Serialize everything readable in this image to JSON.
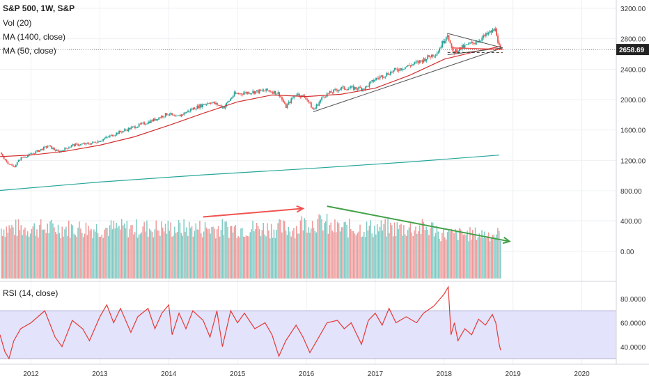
{
  "legend": {
    "symbol": "S&P 500, 1W, S&P",
    "vol": "Vol (20)",
    "ma_long": "MA (1400, close)",
    "ma_short": "MA (50, close)",
    "rsi": "RSI (14, close)"
  },
  "price_tag": "2658.69",
  "colors": {
    "up": "#26a69a",
    "down": "#ef5350",
    "vol_up": "#80cbc4",
    "vol_down": "#ef9a9a",
    "ma_short": "#d32f2f",
    "ma_long": "#26a69a",
    "rsi_line": "#e53935",
    "rsi_band": "#e3e3fb",
    "trend_red": "#ef5350",
    "trend_green": "#43a047",
    "trend_gray": "#555555"
  },
  "chart_data": [
    {
      "type": "candlestick",
      "x_ticks": [
        "2012",
        "2013",
        "2014",
        "2015",
        "2016",
        "2017",
        "2018",
        "2019",
        "2020"
      ],
      "price_ticks": [
        "3200.00",
        "2800.00",
        "2400.00",
        "2000.00",
        "1600.00",
        "1200.00",
        "800.00"
      ],
      "volume_ticks": [
        "400.00",
        "0.00"
      ],
      "price_points": [
        [
          2011.55,
          1300
        ],
        [
          2011.65,
          1180
        ],
        [
          2011.75,
          1110
        ],
        [
          2011.85,
          1230
        ],
        [
          2012.0,
          1280
        ],
        [
          2012.25,
          1390
        ],
        [
          2012.4,
          1310
        ],
        [
          2012.6,
          1400
        ],
        [
          2012.85,
          1420
        ],
        [
          2013.0,
          1460
        ],
        [
          2013.25,
          1560
        ],
        [
          2013.5,
          1640
        ],
        [
          2013.75,
          1720
        ],
        [
          2014.0,
          1820
        ],
        [
          2014.1,
          1760
        ],
        [
          2014.35,
          1880
        ],
        [
          2014.6,
          1970
        ],
        [
          2014.8,
          1900
        ],
        [
          2014.95,
          2070
        ],
        [
          2015.2,
          2100
        ],
        [
          2015.45,
          2120
        ],
        [
          2015.6,
          2080
        ],
        [
          2015.7,
          1900
        ],
        [
          2015.85,
          2080
        ],
        [
          2016.0,
          2020
        ],
        [
          2016.1,
          1860
        ],
        [
          2016.25,
          2050
        ],
        [
          2016.5,
          2150
        ],
        [
          2016.85,
          2150
        ],
        [
          2017.0,
          2270
        ],
        [
          2017.3,
          2390
        ],
        [
          2017.6,
          2480
        ],
        [
          2017.9,
          2620
        ],
        [
          2018.05,
          2870
        ],
        [
          2018.12,
          2620
        ],
        [
          2018.3,
          2700
        ],
        [
          2018.5,
          2780
        ],
        [
          2018.7,
          2900
        ],
        [
          2018.75,
          2920
        ],
        [
          2018.8,
          2690
        ],
        [
          2018.82,
          2658
        ]
      ],
      "ma50_points": [
        [
          2011.55,
          1250
        ],
        [
          2012.0,
          1270
        ],
        [
          2012.5,
          1320
        ],
        [
          2013.0,
          1400
        ],
        [
          2013.5,
          1510
        ],
        [
          2014.0,
          1660
        ],
        [
          2014.5,
          1820
        ],
        [
          2015.0,
          1970
        ],
        [
          2015.5,
          2060
        ],
        [
          2016.0,
          2040
        ],
        [
          2016.5,
          2070
        ],
        [
          2017.0,
          2150
        ],
        [
          2017.5,
          2320
        ],
        [
          2018.0,
          2530
        ],
        [
          2018.5,
          2640
        ],
        [
          2018.82,
          2700
        ]
      ],
      "ma1400_points": [
        [
          2011.55,
          805
        ],
        [
          2013.0,
          915
        ],
        [
          2014.5,
          1010
        ],
        [
          2016.0,
          1090
        ],
        [
          2017.5,
          1180
        ],
        [
          2018.8,
          1270
        ]
      ],
      "triangle_upper": [
        [
          2018.05,
          2870
        ],
        [
          2018.85,
          2680
        ]
      ],
      "triangle_lower": [
        [
          2018.05,
          2590
        ],
        [
          2018.85,
          2680
        ]
      ],
      "support_line": [
        [
          2016.1,
          1840
        ],
        [
          2018.85,
          2680
        ]
      ],
      "dashed_level": [
        [
          2018.05,
          2620
        ],
        [
          2018.85,
          2620
        ]
      ],
      "pennant_trend": [
        [
          2018.1,
          2680
        ],
        [
          2018.85,
          2660
        ]
      ],
      "volume_trend_red": [
        [
          2014.5,
          450
        ],
        [
          2015.95,
          560
        ]
      ],
      "volume_trend_green": [
        [
          2016.3,
          590
        ],
        [
          2018.95,
          130
        ]
      ],
      "rsi_ticks": [
        "80.0000",
        "60.0000",
        "40.0000"
      ],
      "rsi_levels": [
        70,
        30
      ],
      "rsi_points": [
        [
          2011.55,
          50
        ],
        [
          2011.62,
          36
        ],
        [
          2011.68,
          30
        ],
        [
          2011.75,
          45
        ],
        [
          2011.85,
          55
        ],
        [
          2012.0,
          60
        ],
        [
          2012.2,
          70
        ],
        [
          2012.35,
          48
        ],
        [
          2012.45,
          40
        ],
        [
          2012.6,
          62
        ],
        [
          2012.75,
          55
        ],
        [
          2012.85,
          45
        ],
        [
          2013.0,
          65
        ],
        [
          2013.1,
          75
        ],
        [
          2013.2,
          60
        ],
        [
          2013.3,
          72
        ],
        [
          2013.45,
          52
        ],
        [
          2013.55,
          65
        ],
        [
          2013.7,
          72
        ],
        [
          2013.8,
          55
        ],
        [
          2013.9,
          68
        ],
        [
          2014.0,
          75
        ],
        [
          2014.05,
          50
        ],
        [
          2014.15,
          68
        ],
        [
          2014.25,
          55
        ],
        [
          2014.35,
          70
        ],
        [
          2014.5,
          62
        ],
        [
          2014.6,
          48
        ],
        [
          2014.7,
          70
        ],
        [
          2014.78,
          40
        ],
        [
          2014.9,
          70
        ],
        [
          2015.0,
          60
        ],
        [
          2015.1,
          68
        ],
        [
          2015.25,
          55
        ],
        [
          2015.4,
          60
        ],
        [
          2015.5,
          50
        ],
        [
          2015.6,
          32
        ],
        [
          2015.7,
          45
        ],
        [
          2015.85,
          58
        ],
        [
          2015.95,
          48
        ],
        [
          2016.05,
          35
        ],
        [
          2016.15,
          45
        ],
        [
          2016.3,
          60
        ],
        [
          2016.45,
          62
        ],
        [
          2016.55,
          55
        ],
        [
          2016.65,
          60
        ],
        [
          2016.8,
          42
        ],
        [
          2016.9,
          62
        ],
        [
          2017.0,
          68
        ],
        [
          2017.1,
          58
        ],
        [
          2017.2,
          72
        ],
        [
          2017.3,
          60
        ],
        [
          2017.45,
          65
        ],
        [
          2017.6,
          60
        ],
        [
          2017.7,
          68
        ],
        [
          2017.85,
          74
        ],
        [
          2018.0,
          84
        ],
        [
          2018.06,
          90
        ],
        [
          2018.1,
          50
        ],
        [
          2018.15,
          60
        ],
        [
          2018.2,
          45
        ],
        [
          2018.3,
          55
        ],
        [
          2018.4,
          50
        ],
        [
          2018.5,
          63
        ],
        [
          2018.6,
          58
        ],
        [
          2018.7,
          67
        ],
        [
          2018.75,
          60
        ],
        [
          2018.8,
          42
        ],
        [
          2018.82,
          37
        ]
      ]
    }
  ]
}
